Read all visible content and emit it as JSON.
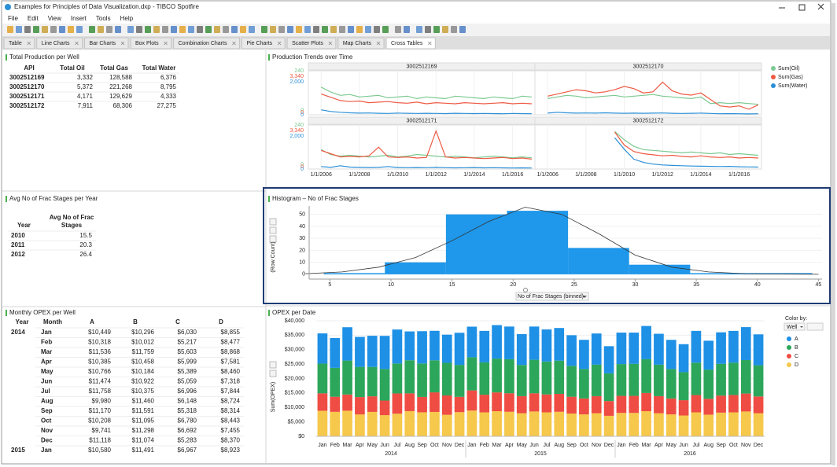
{
  "window": {
    "title": "Examples for Principles of Data Visualization.dxp - TIBCO Spotfire",
    "menu": [
      "File",
      "Edit",
      "View",
      "Insert",
      "Tools",
      "Help"
    ]
  },
  "tabs": [
    "Table",
    "Line Charts",
    "Bar Charts",
    "Box Plots",
    "Combination Charts",
    "Pie Charts",
    "Scatter Plots",
    "Map Charts",
    "Cross Tables"
  ],
  "active_tab": 8,
  "production_table": {
    "title": "Total Production per Well",
    "columns": [
      "API",
      "Total Oil",
      "Total Gas",
      "Total Water"
    ],
    "rows": [
      [
        "3002512169",
        "3,332",
        "128,588",
        "6,376"
      ],
      [
        "3002512170",
        "5,372",
        "221,268",
        "8,795"
      ],
      [
        "3002512171",
        "4,171",
        "129,629",
        "4,333"
      ],
      [
        "3002512172",
        "7,911",
        "68,306",
        "27,275"
      ]
    ]
  },
  "frac_table": {
    "title": "Avg No of Frac Stages per Year",
    "year_header": "Year",
    "value_header_lines": [
      "Avg No of Frac",
      "Stages"
    ],
    "rows": [
      [
        "2010",
        "15.5"
      ],
      [
        "2011",
        "20.3"
      ],
      [
        "2012",
        "26.4"
      ]
    ]
  },
  "opex_table": {
    "title": "Monthly OPEX per Well",
    "columns": [
      "Year",
      "Month",
      "A",
      "B",
      "C",
      "D"
    ],
    "rows": [
      [
        "2014",
        "Jan",
        "$10,449",
        "$10,296",
        "$6,030",
        "$8,855"
      ],
      [
        null,
        "Feb",
        "$10,318",
        "$10,012",
        "$5,217",
        "$8,477"
      ],
      [
        null,
        "Mar",
        "$11,536",
        "$11,759",
        "$5,603",
        "$8,868"
      ],
      [
        null,
        "Apr",
        "$10,385",
        "$10,458",
        "$5,999",
        "$7,581"
      ],
      [
        null,
        "May",
        "$10,766",
        "$10,184",
        "$5,389",
        "$8,460"
      ],
      [
        null,
        "Jun",
        "$11,474",
        "$10,922",
        "$5,059",
        "$7,318"
      ],
      [
        null,
        "Jul",
        "$11,758",
        "$10,375",
        "$6,996",
        "$7,844"
      ],
      [
        null,
        "Aug",
        "$9,980",
        "$11,460",
        "$6,148",
        "$8,724"
      ],
      [
        null,
        "Sep",
        "$11,170",
        "$11,591",
        "$5,318",
        "$8,314"
      ],
      [
        null,
        "Oct",
        "$10,208",
        "$11,095",
        "$6,780",
        "$8,443"
      ],
      [
        null,
        "Nov",
        "$9,741",
        "$11,298",
        "$6,692",
        "$7,455"
      ],
      [
        null,
        "Dec",
        "$11,118",
        "$11,074",
        "$5,283",
        "$8,370"
      ],
      [
        "2015",
        "Jan",
        "$10,580",
        "$11,491",
        "$6,967",
        "$8,923"
      ]
    ]
  },
  "chart_data": [
    {
      "type": "line",
      "title": "Production Trends over Time",
      "x": [
        "1/1/2006",
        "7/1/2006",
        "1/1/2007",
        "7/1/2007",
        "1/1/2008",
        "7/1/2008",
        "1/1/2009",
        "7/1/2009",
        "1/1/2010",
        "7/1/2010",
        "1/1/2011",
        "7/1/2011",
        "1/1/2012",
        "7/1/2012",
        "1/1/2013",
        "7/1/2013",
        "1/1/2014",
        "7/1/2014",
        "1/1/2015",
        "7/1/2015",
        "1/1/2016",
        "7/1/2016",
        "1/1/2017"
      ],
      "xlim": [
        "5/1/2005",
        "3/1/2017"
      ],
      "xticks": [
        "1/1/2006",
        "1/1/2008",
        "1/1/2010",
        "1/1/2012",
        "1/1/2014",
        "1/1/2016"
      ],
      "series": [
        {
          "name": "Sum(Oil)",
          "color": "#7cc992",
          "ylim": [
            0,
            240
          ],
          "yticks": [
            0,
            240
          ]
        },
        {
          "name": "Sum(Gas)",
          "color": "#ee5a43",
          "ylim": [
            0,
            3340
          ],
          "yticks": [
            0,
            {
              "value": 3340,
              "label": "3,340"
            }
          ]
        },
        {
          "name": "Sum(Water)",
          "color": "#2b8fd6",
          "ylim": [
            0,
            2000
          ],
          "yticks": [
            0,
            {
              "value": 2000,
              "label": "2,000"
            }
          ]
        }
      ],
      "panels": [
        {
          "title": "3002512169",
          "values": [
            [
              140,
              110,
              90,
              95,
              80,
              85,
              90,
              75,
              80,
              85,
              70,
              80,
              75,
              70,
              85,
              80,
              75,
              70,
              80,
              75,
              70,
              85,
              80
            ],
            [
              1700,
              1400,
              1100,
              1000,
              1050,
              900,
              950,
              1000,
              900,
              850,
              950,
              800,
              900,
              850,
              800,
              900,
              850,
              800,
              850,
              900,
              800,
              850,
              800
            ],
            [
              300,
              200,
              150,
              120,
              100,
              110,
              90,
              80,
              100,
              90,
              80,
              90,
              80,
              70,
              90,
              80,
              70,
              80,
              70,
              60,
              80,
              70,
              60
            ]
          ]
        },
        {
          "title": "3002512170",
          "values": [
            [
              70,
              80,
              90,
              85,
              75,
              80,
              85,
              90,
              80,
              85,
              90,
              95,
              85,
              80,
              75,
              70,
              80,
              40,
              45,
              40,
              45,
              40,
              35
            ],
            [
              1500,
              1700,
              1900,
              2100,
              2000,
              1800,
              1900,
              2100,
              2400,
              2200,
              1800,
              1900,
              2800,
              2000,
              1700,
              1600,
              1800,
              1200,
              600,
              500,
              600,
              300,
              700
            ],
            [
              100,
              150,
              120,
              100,
              110,
              100,
              120,
              100,
              90,
              100,
              90,
              100,
              110,
              90,
              80,
              90,
              100,
              80,
              60,
              70,
              60,
              50,
              60
            ]
          ]
        },
        {
          "title": "3002512171",
          "values": [
            [
              90,
              60,
              50,
              55,
              50,
              45,
              50,
              55,
              45,
              50,
              60,
              55,
              50,
              45,
              50,
              45,
              40,
              45,
              50,
              45,
              40,
              45,
              40
            ],
            [
              1500,
              1200,
              900,
              950,
              900,
              1000,
              1800,
              900,
              850,
              900,
              800,
              850,
              3300,
              900,
              800,
              850,
              800,
              750,
              800,
              850,
              750,
              800,
              700
            ],
            [
              150,
              100,
              200,
              120,
              100,
              90,
              100,
              150,
              90,
              80,
              90,
              80,
              100,
              80,
              70,
              80,
              90,
              70,
              80,
              70,
              60,
              70,
              60
            ]
          ]
        },
        {
          "title": "3002512172",
          "values": [
            [
              null,
              null,
              null,
              null,
              null,
              null,
              null,
              200,
              150,
              110,
              90,
              85,
              80,
              75,
              70,
              75,
              70,
              65,
              70,
              60,
              65,
              60,
              55
            ],
            [
              null,
              null,
              null,
              null,
              null,
              null,
              null,
              3200,
              2000,
              1400,
              1200,
              1100,
              1000,
              1050,
              950,
              900,
              1000,
              900,
              850,
              900,
              800,
              850,
              800
            ],
            [
              null,
              null,
              null,
              null,
              null,
              null,
              null,
              1900,
              1200,
              600,
              400,
              300,
              250,
              220,
              200,
              180,
              170,
              160,
              150,
              160,
              140,
              130,
              120
            ]
          ]
        }
      ]
    },
    {
      "type": "histogram",
      "title": "Histogram – No of Frac Stages",
      "bins": [
        4.5,
        9.5,
        14.5,
        19.5,
        24.5,
        29.5,
        34.5,
        39.5,
        44.5
      ],
      "counts": [
        1,
        10,
        50,
        53,
        22,
        8,
        1,
        1
      ],
      "color": "#1f97ea",
      "curve": {
        "x": [
          3,
          6,
          9,
          12,
          15,
          18,
          21,
          24,
          27,
          30,
          33,
          36,
          39,
          42,
          45
        ],
        "y": [
          0.5,
          2,
          6,
          14,
          28,
          44,
          56,
          50,
          34,
          16,
          6,
          2,
          0.5,
          0.2,
          0
        ]
      },
      "xlim": [
        3.3,
        45.3
      ],
      "xticks": [
        5,
        10,
        15,
        20,
        25,
        30,
        35,
        40,
        45
      ],
      "ylim": [
        -4,
        57
      ],
      "yticks": [
        0,
        10,
        20,
        30,
        40,
        50
      ],
      "xlabel": "No of Frac Stages (binned)",
      "ylabel": "(Row Count)"
    },
    {
      "type": "stacked_bar",
      "title": "OPEX per Date",
      "categories": [
        "Jan",
        "Feb",
        "Mar",
        "Apr",
        "May",
        "Jun",
        "Jul",
        "Aug",
        "Sep",
        "Oct",
        "Nov",
        "Dec",
        "Jan",
        "Feb",
        "Mar",
        "Apr",
        "May",
        "Jun",
        "Jul",
        "Aug",
        "Sep",
        "Oct",
        "Nov",
        "Dec",
        "Jan",
        "Feb",
        "Mar",
        "Apr",
        "May",
        "Jun",
        "Jul",
        "Aug",
        "Sep",
        "Oct",
        "Nov",
        "Dec"
      ],
      "years": [
        "2014",
        "2015",
        "2016"
      ],
      "series": [
        {
          "name": "A",
          "color": "#1e90e6",
          "values": [
            10449,
            10318,
            11536,
            10385,
            10766,
            11474,
            11758,
            9980,
            11170,
            10208,
            9741,
            11118,
            10580,
            10900,
            11600,
            11300,
            10700,
            11500,
            11100,
            11300,
            10600,
            10100,
            10800,
            9400,
            10900,
            10800,
            11500,
            10700,
            10100,
            9700,
            11000,
            10000,
            10900,
            11000,
            11400,
            10700
          ]
        },
        {
          "name": "B",
          "color": "#2ca65b",
          "values": [
            10296,
            10012,
            11759,
            10458,
            10184,
            10922,
            10375,
            11460,
            11591,
            11095,
            11298,
            11074,
            11491,
            11200,
            11700,
            11800,
            10800,
            11600,
            11400,
            11500,
            10700,
            10200,
            10900,
            9600,
            11000,
            11100,
            11700,
            10900,
            10200,
            9700,
            11200,
            10100,
            11000,
            11200,
            11600,
            10800
          ]
        },
        {
          "name": "C",
          "color": "#ef4c43",
          "values": [
            6030,
            5217,
            5603,
            5999,
            5389,
            5059,
            6996,
            6148,
            5318,
            6780,
            6692,
            5283,
            6967,
            6100,
            6500,
            6400,
            5900,
            6300,
            6200,
            6200,
            5800,
            5500,
            5900,
            5100,
            5900,
            5900,
            6300,
            5900,
            5500,
            5300,
            6000,
            5500,
            5900,
            6000,
            6200,
            5800
          ]
        },
        {
          "name": "D",
          "color": "#f6c84b",
          "values": [
            8855,
            8477,
            8868,
            7581,
            8460,
            7318,
            7844,
            8724,
            8314,
            8443,
            7455,
            8370,
            8923,
            8300,
            8700,
            8500,
            8000,
            8600,
            8300,
            8500,
            7900,
            7600,
            8000,
            7100,
            8100,
            8100,
            8700,
            8000,
            7600,
            7200,
            8300,
            7500,
            8200,
            8300,
            8600,
            8000
          ]
        }
      ],
      "ylim": [
        0,
        40000
      ],
      "yticks": [
        {
          "value": 0,
          "label": "$0"
        },
        {
          "value": 5000,
          "label": "$5,000"
        },
        {
          "value": 10000,
          "label": "$10,000"
        },
        {
          "value": 15000,
          "label": "$15,000"
        },
        {
          "value": 20000,
          "label": "$20,000"
        },
        {
          "value": 25000,
          "label": "$25,000"
        },
        {
          "value": 30000,
          "label": "$30,000"
        },
        {
          "value": 35000,
          "label": "$35,000"
        },
        {
          "value": 40000,
          "label": "$40,000"
        }
      ],
      "ylabel": "Sum(OPEX)",
      "legend_title": "Color by:",
      "legend_selector": "Well",
      "grid": true
    }
  ]
}
